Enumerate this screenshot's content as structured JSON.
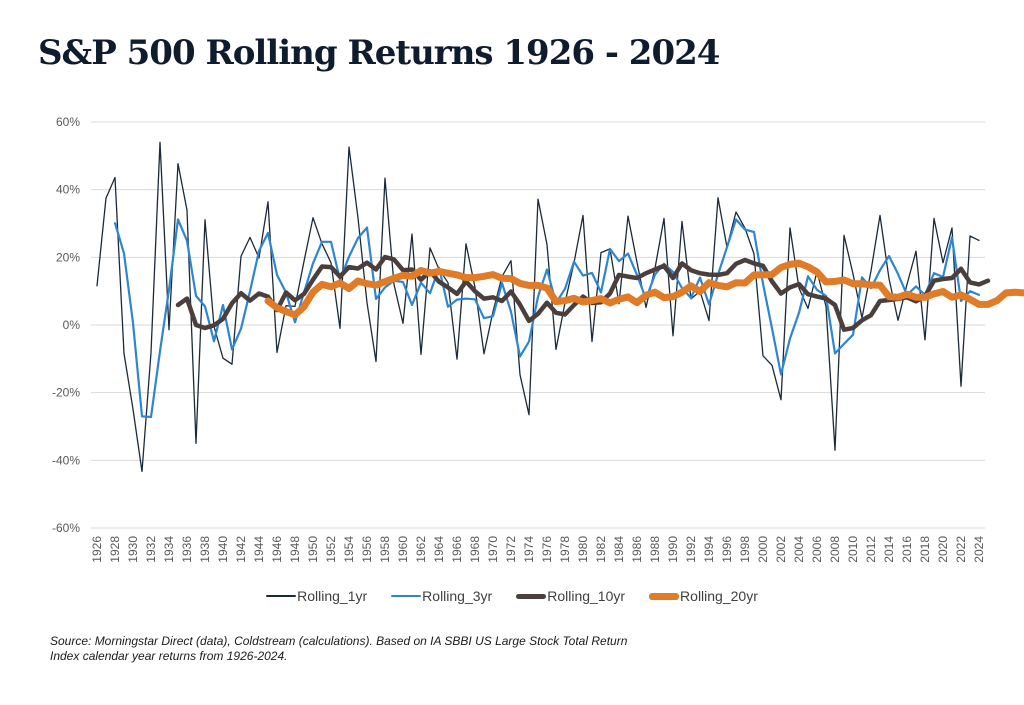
{
  "title": "S&P 500 Rolling Returns 1926 - 2024",
  "source": {
    "line1": "Source: Morningstar Direct (data), Coldstream (calculations). Based on IA SBBI US Large Stock Total Return",
    "line2": "Index calendar year returns from 1926-2024."
  },
  "chart_data": {
    "type": "line",
    "title": "S&P 500 Rolling Returns 1926 - 2024",
    "xlabel": "",
    "ylabel": "",
    "ylim": [
      -60,
      60
    ],
    "yticks": [
      60,
      40,
      20,
      0,
      -20,
      -40,
      -60
    ],
    "ytick_labels": [
      "60%",
      "40%",
      "20%",
      "0%",
      "-20%",
      "-40%",
      "-60%"
    ],
    "x_start": 1926,
    "x_end": 2024,
    "xtick_step": 2,
    "grid": true,
    "legend": "bottom",
    "series": [
      {
        "name": "Rolling_1yr",
        "color": "#1b2a3a",
        "start_year": 1926,
        "values": [
          11.6,
          37.5,
          43.6,
          -8.4,
          -24.9,
          -43.3,
          -8.2,
          54.0,
          -1.4,
          47.7,
          33.9,
          -35.0,
          31.1,
          -0.4,
          -9.8,
          -11.6,
          20.3,
          25.9,
          19.8,
          36.4,
          -8.1,
          5.7,
          5.5,
          18.8,
          31.7,
          24.0,
          18.4,
          -1.0,
          52.6,
          31.6,
          6.6,
          -10.8,
          43.4,
          12.0,
          0.5,
          26.9,
          -8.7,
          22.8,
          16.5,
          12.5,
          -10.1,
          24.0,
          11.1,
          -8.5,
          4.0,
          14.3,
          19.0,
          -14.7,
          -26.5,
          37.2,
          23.8,
          -7.2,
          6.6,
          18.4,
          32.4,
          -4.9,
          21.4,
          22.5,
          6.3,
          32.2,
          18.5,
          5.2,
          16.8,
          31.5,
          -3.2,
          30.6,
          7.7,
          10.0,
          1.3,
          37.6,
          23.0,
          33.4,
          28.6,
          21.0,
          -9.1,
          -11.9,
          -22.1,
          28.7,
          10.9,
          4.9,
          15.8,
          5.5,
          -37.0,
          26.5,
          15.1,
          2.1,
          16.0,
          32.4,
          13.7,
          1.4,
          12.0,
          21.8,
          -4.4,
          31.5,
          18.4,
          28.7,
          -18.1,
          26.3,
          25.0
        ]
      },
      {
        "name": "Rolling_3yr",
        "color": "#2e86d0",
        "start_year": 1928,
        "values": [
          30.1,
          21.2,
          0.6,
          -27.0,
          -27.2,
          -7.7,
          10.4,
          31.2,
          24.9,
          8.6,
          5.5,
          -4.8,
          5.9,
          -7.2,
          -1.1,
          10.0,
          21.9,
          27.2,
          14.8,
          9.6,
          0.8,
          9.6,
          18.2,
          24.6,
          24.6,
          13.3,
          20.2,
          25.7,
          28.8,
          7.7,
          11.1,
          13.1,
          12.7,
          5.9,
          12.5,
          9.4,
          16.9,
          5.4,
          7.5,
          7.8,
          7.6,
          2.0,
          2.6,
          12.4,
          3.9,
          -9.3,
          -4.9,
          8.4,
          16.4,
          6.5,
          10.7,
          18.7,
          14.6,
          15.4,
          9.6,
          22.5,
          18.9,
          21.1,
          14.8,
          7.7,
          14.9,
          18.1,
          15.7,
          10.9,
          8.0,
          14.0,
          6.1,
          14.9,
          23.0,
          31.2,
          28.2,
          27.5,
          12.2,
          -1.0,
          -14.6,
          -4.0,
          3.6,
          14.4,
          10.4,
          8.6,
          -8.4,
          -5.6,
          -2.9,
          14.1,
          10.9,
          16.2,
          20.4,
          15.1,
          8.9,
          11.4,
          8.9,
          15.3,
          14.2,
          25.9,
          7.1,
          10.0,
          8.9
        ]
      },
      {
        "name": "Rolling_10yr",
        "color": "#4a3f3c",
        "start_year": 1935,
        "values": [
          5.9,
          7.8,
          0.0,
          -0.9,
          -0.1,
          1.8,
          6.4,
          9.4,
          7.2,
          9.3,
          8.4,
          4.4,
          9.6,
          7.3,
          9.2,
          13.4,
          17.3,
          17.1,
          14.3,
          17.1,
          16.7,
          18.4,
          16.4,
          20.1,
          19.4,
          16.2,
          16.4,
          13.4,
          15.9,
          12.8,
          11.1,
          9.2,
          12.9,
          10.0,
          7.8,
          8.2,
          7.1,
          9.9,
          6.0,
          1.2,
          3.3,
          6.6,
          3.6,
          3.1,
          5.9,
          8.4,
          6.5,
          6.7,
          9.3,
          14.8,
          14.3,
          13.9,
          15.3,
          16.4,
          17.5,
          13.9,
          18.2,
          16.2,
          15.3,
          14.9,
          14.8,
          15.3,
          18.1,
          19.2,
          18.2,
          17.5,
          12.9,
          9.3,
          11.1,
          12.1,
          9.1,
          8.4,
          7.8,
          5.9,
          -1.4,
          -0.9,
          1.4,
          2.9,
          7.1,
          7.4,
          7.7,
          8.2,
          7.0,
          8.5,
          13.1,
          13.6,
          13.9,
          16.6,
          12.6,
          12.0,
          13.1
        ]
      },
      {
        "name": "Rolling_20yr",
        "color": "#e07b27",
        "start_year": 1945,
        "values": [
          7.1,
          5.1,
          4.0,
          3.0,
          5.4,
          9.7,
          12.0,
          11.3,
          12.4,
          10.8,
          13.0,
          12.2,
          11.8,
          12.8,
          13.8,
          14.7,
          14.4,
          16.1,
          15.3,
          15.8,
          15.3,
          14.8,
          14.0,
          14.0,
          14.4,
          14.9,
          13.8,
          13.7,
          12.3,
          11.7,
          11.7,
          10.9,
          6.9,
          7.2,
          7.9,
          6.8,
          7.2,
          7.8,
          6.5,
          7.6,
          8.3,
          6.6,
          8.8,
          9.7,
          8.1,
          8.4,
          9.7,
          11.6,
          9.9,
          12.5,
          11.7,
          11.3,
          12.5,
          12.4,
          14.8,
          14.8,
          14.9,
          17.0,
          17.9,
          18.3,
          17.2,
          15.7,
          12.7,
          12.9,
          13.3,
          12.2,
          12.2,
          11.8,
          11.8,
          8.4,
          8.2,
          9.1,
          8.2,
          8.2,
          9.2,
          9.9,
          8.2,
          8.9,
          7.6,
          6.1,
          6.1,
          7.2,
          9.5,
          9.7,
          9.5,
          10.3
        ]
      }
    ]
  }
}
